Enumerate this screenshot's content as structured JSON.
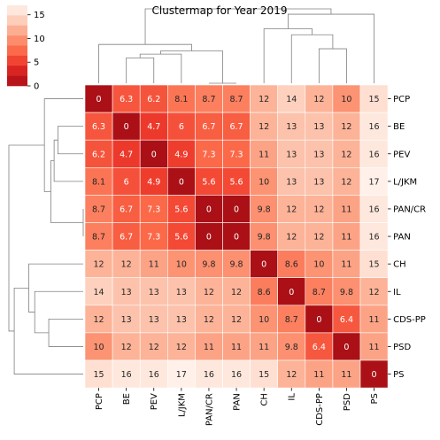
{
  "chart_data": {
    "type": "heatmap",
    "title": "Clustermap for Year 2019",
    "row_labels": [
      "PCP",
      "BE",
      "PEV",
      "L/JKM",
      "PAN/CR",
      "PAN",
      "CH",
      "IL",
      "CDS-PP",
      "PSD",
      "PS"
    ],
    "col_labels": [
      "PCP",
      "BE",
      "PEV",
      "L/JKM",
      "PAN/CR",
      "PAN",
      "CH",
      "IL",
      "CDS-PP",
      "PSD",
      "PS"
    ],
    "values": [
      [
        0,
        6.3,
        6.2,
        8.1,
        8.7,
        8.7,
        12,
        14,
        12,
        10,
        15
      ],
      [
        6.3,
        0,
        4.7,
        6,
        6.7,
        6.7,
        12,
        13,
        13,
        12,
        16
      ],
      [
        6.2,
        4.7,
        0,
        4.9,
        7.3,
        7.3,
        11,
        13,
        13,
        12,
        16
      ],
      [
        8.1,
        6,
        4.9,
        0,
        5.6,
        5.6,
        10,
        13,
        13,
        12,
        17
      ],
      [
        8.7,
        6.7,
        7.3,
        5.6,
        0,
        0,
        9.8,
        12,
        12,
        11,
        16
      ],
      [
        8.7,
        6.7,
        7.3,
        5.6,
        0,
        0,
        9.8,
        12,
        12,
        11,
        16
      ],
      [
        12,
        12,
        11,
        10,
        9.8,
        9.8,
        0,
        8.6,
        10,
        11,
        15
      ],
      [
        14,
        13,
        13,
        13,
        12,
        12,
        8.6,
        0,
        8.7,
        9.8,
        12
      ],
      [
        12,
        13,
        13,
        13,
        12,
        12,
        10,
        8.7,
        0,
        6.4,
        11
      ],
      [
        10,
        12,
        12,
        12,
        11,
        11,
        11,
        9.8,
        6.4,
        0,
        11
      ],
      [
        15,
        16,
        16,
        17,
        16,
        16,
        15,
        12,
        11,
        11,
        0
      ]
    ],
    "colormap": "Reds_r",
    "colorbar": {
      "ticks": [
        "0",
        "5",
        "10",
        "15"
      ],
      "vmin": 0,
      "vmax": 17
    },
    "grid": false
  }
}
